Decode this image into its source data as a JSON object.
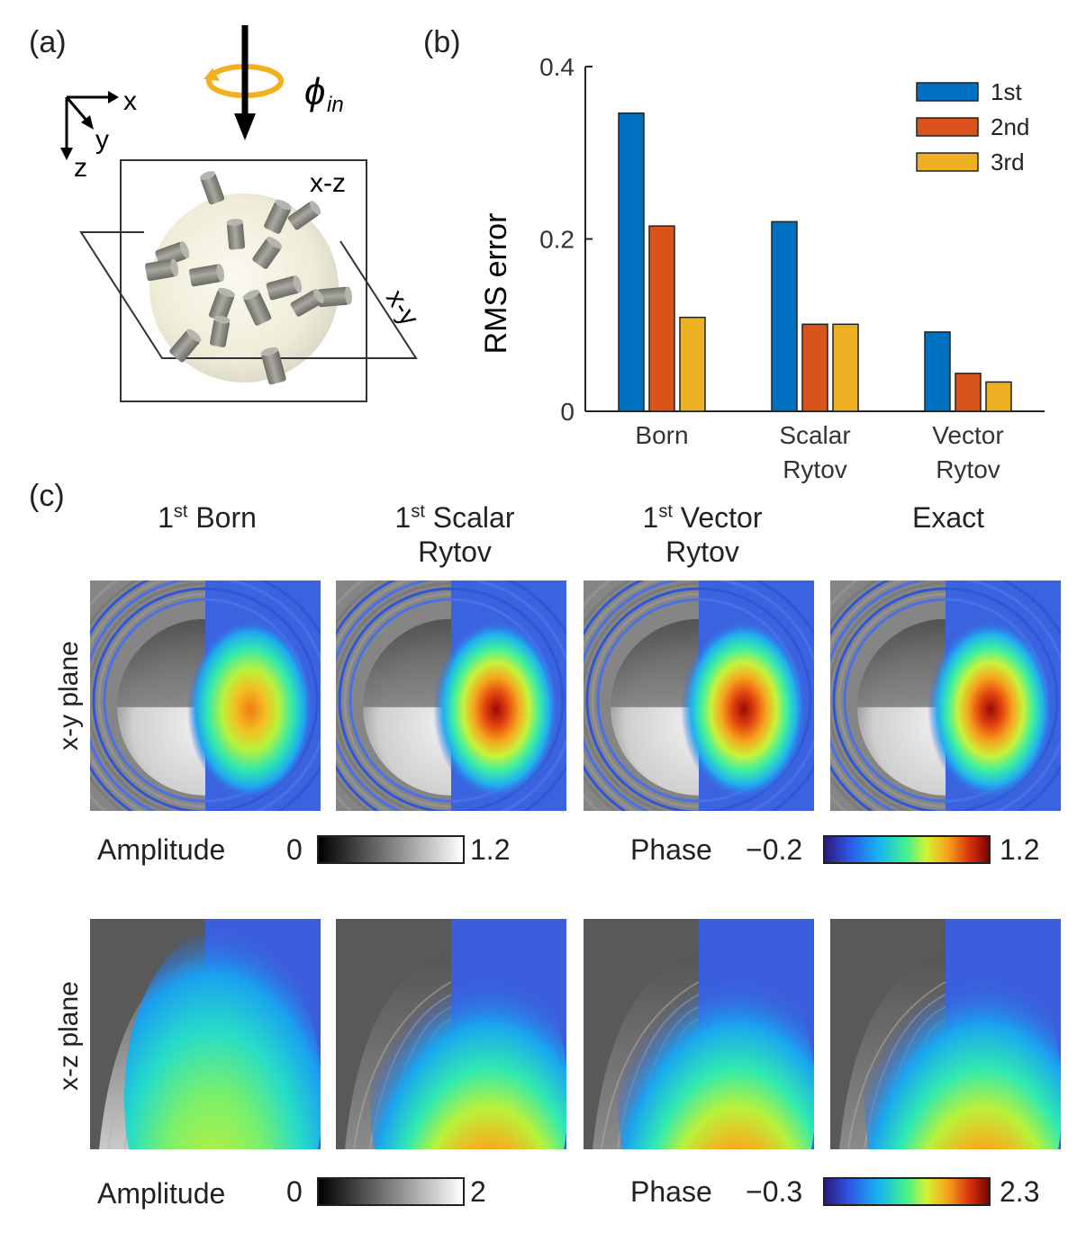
{
  "panel_labels": {
    "a": "(a)",
    "b": "(b)",
    "c": "(c)"
  },
  "panel_a": {
    "axes": {
      "x": "x",
      "y": "y",
      "z": "z"
    },
    "phi_symbol": "ϕ",
    "phi_sub": "in",
    "plane_xz": "x-z",
    "plane_xy": "x-y",
    "colors": {
      "arrow_ring": "#f2b01e",
      "sphere": "#f1eedc",
      "cylinder": "#8a8a82"
    }
  },
  "chart_data": {
    "type": "bar",
    "categories": [
      [
        "Born"
      ],
      [
        "Scalar",
        "Rytov"
      ],
      [
        "Vector",
        "Rytov"
      ]
    ],
    "series": [
      {
        "name": "1st",
        "color": "#0070c0",
        "values": [
          0.346,
          0.22,
          0.092
        ]
      },
      {
        "name": "2nd",
        "color": "#d9541a",
        "values": [
          0.215,
          0.101,
          0.044
        ]
      },
      {
        "name": "3rd",
        "color": "#edb022",
        "values": [
          0.109,
          0.101,
          0.034
        ]
      }
    ],
    "ylabel": "RMS error",
    "ylim": [
      0,
      0.4
    ],
    "yticks": [
      "0",
      "0.2",
      "0.4"
    ],
    "legend": "top-right",
    "grid": false
  },
  "panel_c": {
    "columns": [
      {
        "sup": "1",
        "sup_suffix": "st",
        "line1": "Born",
        "line2": ""
      },
      {
        "sup": "1",
        "sup_suffix": "st",
        "line1": "Scalar",
        "line2": "Rytov"
      },
      {
        "sup": "1",
        "sup_suffix": "st",
        "line1": "Vector",
        "line2": "Rytov"
      },
      {
        "sup": "",
        "sup_suffix": "",
        "line1": "Exact",
        "line2": ""
      }
    ],
    "rows": [
      "x-y plane",
      "x-z plane"
    ],
    "colorbars": {
      "xy_amplitude": {
        "label": "Amplitude",
        "min": "0",
        "max": "1.2"
      },
      "xy_phase": {
        "label": "Phase",
        "min": "−0.2",
        "max": "1.2"
      },
      "xz_amplitude": {
        "label": "Amplitude",
        "min": "0",
        "max": "2"
      },
      "xz_phase": {
        "label": "Phase",
        "min": "−0.3",
        "max": "2.3"
      }
    },
    "phase_peak": {
      "xy": [
        0.85,
        0.95,
        1.0,
        1.0
      ],
      "xz": [
        0.55,
        0.95,
        1.0,
        0.9
      ]
    }
  }
}
